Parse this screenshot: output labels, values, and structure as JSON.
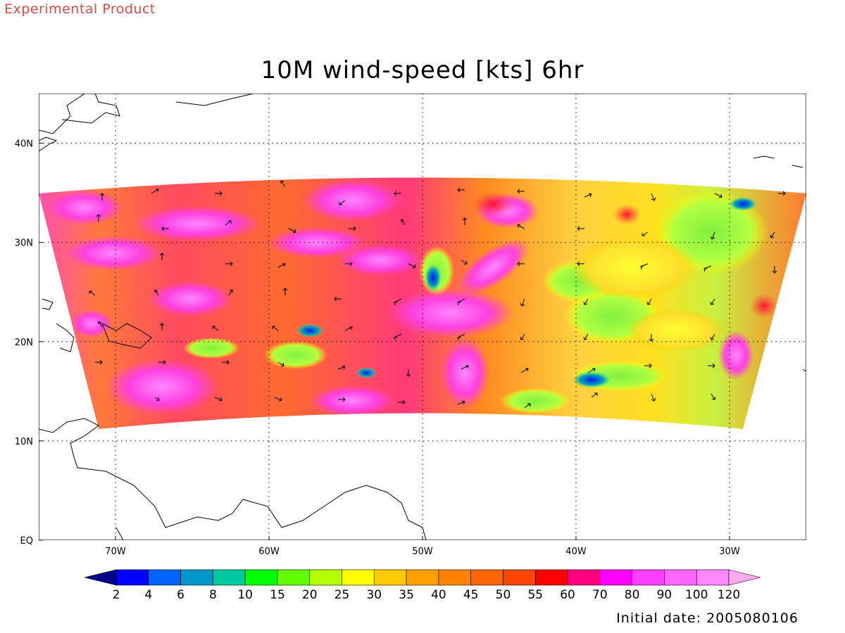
{
  "product_label": "Experimental Product",
  "title": "10M wind-speed [kts] 6hr",
  "initial_date_label": "Initial date: 2005080106",
  "map": {
    "lon_range": [
      -75,
      -25
    ],
    "lat_range": [
      0,
      45
    ],
    "lat_ticks": [
      {
        "value": 0,
        "label": "EQ"
      },
      {
        "value": 10,
        "label": "10N"
      },
      {
        "value": 20,
        "label": "20N"
      },
      {
        "value": 30,
        "label": "30N"
      },
      {
        "value": 40,
        "label": "40N"
      }
    ],
    "lon_ticks": [
      {
        "value": -70,
        "label": "70W"
      },
      {
        "value": -60,
        "label": "60W"
      },
      {
        "value": -50,
        "label": "50W"
      },
      {
        "value": -40,
        "label": "40W"
      },
      {
        "value": -30,
        "label": "30W"
      }
    ],
    "gridlines": "dotted"
  },
  "colorbar": {
    "labels": [
      "2",
      "4",
      "6",
      "8",
      "10",
      "15",
      "20",
      "25",
      "30",
      "35",
      "40",
      "45",
      "50",
      "55",
      "60",
      "70",
      "80",
      "90",
      "100",
      "120"
    ],
    "colors": [
      "#00008b",
      "#0000ff",
      "#0064ff",
      "#0096c8",
      "#00c8a0",
      "#00ff00",
      "#64ff00",
      "#b4ff00",
      "#ffff00",
      "#ffc800",
      "#ffa000",
      "#ff8200",
      "#ff6400",
      "#ff4600",
      "#ff0000",
      "#ff0080",
      "#ff00ff",
      "#ff40ff",
      "#ff66ff",
      "#ff88ff",
      "#ffaaee"
    ]
  }
}
